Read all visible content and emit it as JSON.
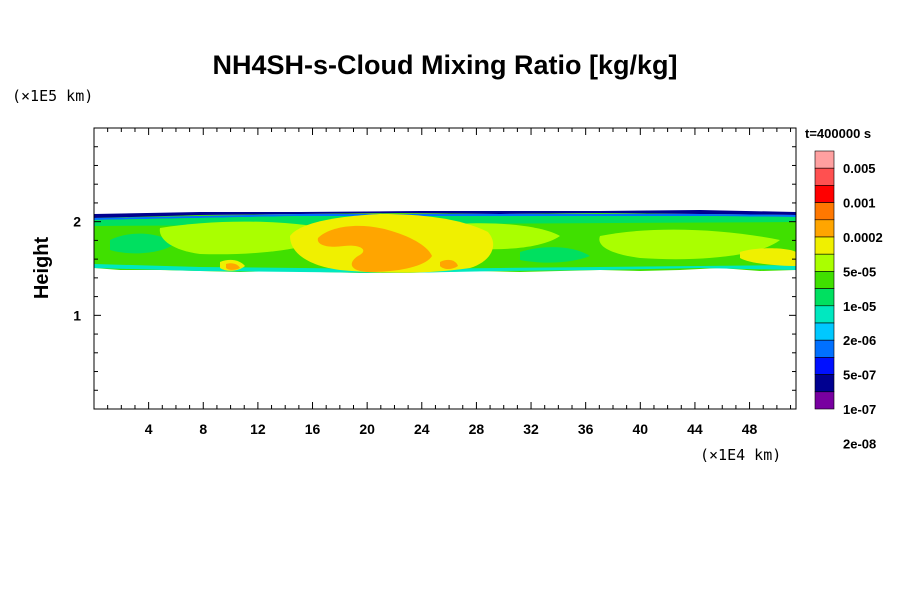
{
  "chart_data": {
    "type": "heatmap",
    "title": "NH4SH-s-Cloud Mixing Ratio [kg/kg]",
    "xlabel": "",
    "ylabel": "Height",
    "x_unit_label": "(×1E4 km)",
    "y_unit_label": "(×1E5 km)",
    "time_label": "t=400000 s",
    "xlim": [
      0,
      51.4
    ],
    "ylim": [
      0,
      3.0
    ],
    "x_ticks": [
      "4",
      "8",
      "12",
      "16",
      "20",
      "24",
      "28",
      "32",
      "36",
      "40",
      "44",
      "48"
    ],
    "y_ticks": [
      "1",
      "2"
    ],
    "x_tick_values": [
      4,
      8,
      12,
      16,
      20,
      24,
      28,
      32,
      36,
      40,
      44,
      48
    ],
    "y_tick_values": [
      1,
      2
    ],
    "colorbar": {
      "labels": [
        "0.005",
        "0.001",
        "0.0002",
        "5e-05",
        "1e-05",
        "2e-06",
        "5e-07",
        "1e-07",
        "2e-08"
      ],
      "colors": [
        "#ffa0a0",
        "#ff5050",
        "#ff0000",
        "#ff7800",
        "#ffa500",
        "#f0f000",
        "#aaff00",
        "#40e000",
        "#00e060",
        "#00e8c0",
        "#00c8ff",
        "#0070ff",
        "#0010ff",
        "#000090",
        "#7800a0"
      ]
    },
    "cloud_layer": {
      "bottom_height": 1.5,
      "top_height": 2.05,
      "core_x_range": [
        18,
        27
      ],
      "core_level": "0.0002"
    }
  }
}
